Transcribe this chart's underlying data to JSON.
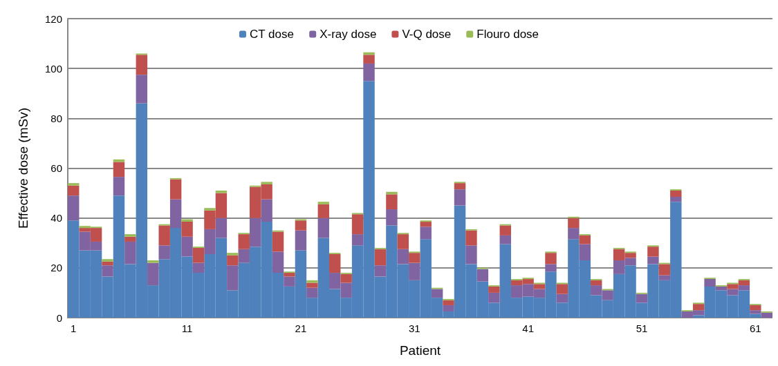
{
  "chart_data": {
    "type": "bar",
    "stacked": true,
    "xlabel": "Patient",
    "ylabel": "Effective dose (mSv)",
    "categories": [
      "1",
      null,
      null,
      null,
      null,
      null,
      null,
      null,
      null,
      null,
      "11",
      null,
      null,
      null,
      null,
      null,
      null,
      null,
      null,
      null,
      "21",
      null,
      null,
      null,
      null,
      null,
      null,
      null,
      null,
      null,
      "31",
      null,
      null,
      null,
      null,
      null,
      null,
      null,
      null,
      null,
      "41",
      null,
      null,
      null,
      null,
      null,
      null,
      null,
      null,
      null,
      "51",
      null,
      null,
      null,
      null,
      null,
      null,
      null,
      null,
      null,
      "61",
      null
    ],
    "series": [
      {
        "name": "CT dose",
        "color": "#4f81bd",
        "values": [
          39,
          27,
          27,
          16.5,
          49,
          21.5,
          86,
          13,
          23.5,
          36,
          24.5,
          18,
          25.5,
          32,
          11,
          22,
          28.5,
          38.5,
          18,
          12.5,
          27,
          8,
          32,
          11.5,
          8,
          29,
          95,
          16.5,
          37,
          21.5,
          15,
          31.5,
          8,
          2.5,
          45,
          21.5,
          14.5,
          6,
          29.5,
          8,
          8.5,
          8,
          18.5,
          6,
          31.5,
          23,
          9,
          7,
          17.5,
          21,
          6,
          21.5,
          15,
          46.5,
          0,
          1,
          12.5,
          11,
          9,
          11,
          1.5,
          0
        ]
      },
      {
        "name": "X-ray dose",
        "color": "#8064a2",
        "values": [
          10,
          7.5,
          3.5,
          4.5,
          7.5,
          9,
          11.5,
          9,
          5.5,
          11.5,
          8,
          4,
          10,
          8,
          10,
          5.5,
          11.5,
          9,
          8.5,
          4,
          8,
          4,
          8,
          6.5,
          6,
          4.5,
          7,
          4.5,
          6.5,
          6,
          7,
          5,
          3.5,
          2.5,
          6.5,
          7.5,
          5,
          4,
          3.5,
          5,
          5,
          3.5,
          3,
          3.5,
          4.5,
          6.5,
          4,
          4,
          5.5,
          3,
          3.5,
          3,
          2,
          2,
          2.5,
          2,
          3,
          1.5,
          2.5,
          2,
          1.5,
          2
        ]
      },
      {
        "name": "V-Q dose",
        "color": "#c0504d",
        "values": [
          4,
          1.5,
          5.5,
          1.5,
          6,
          2,
          8,
          0,
          8,
          8,
          6,
          6,
          7.5,
          10,
          4,
          6,
          12.5,
          6,
          8,
          1.5,
          4,
          2,
          5.5,
          7.5,
          3.5,
          8,
          3.5,
          6.5,
          6,
          6,
          4,
          2,
          0,
          2,
          2.5,
          6,
          0,
          2.5,
          4,
          2,
          2,
          2,
          4.5,
          4,
          4,
          3.5,
          2,
          0,
          4.5,
          2,
          0,
          4,
          4.5,
          2.5,
          0,
          2.5,
          0,
          0,
          2,
          2,
          2,
          0
        ]
      },
      {
        "name": "Flouro dose",
        "color": "#9bbb59",
        "values": [
          1,
          0.8,
          0.5,
          1,
          1,
          1,
          0.5,
          1,
          0.5,
          0.5,
          1,
          0.5,
          1,
          1,
          1,
          0.5,
          0.5,
          1,
          0.5,
          0.5,
          0.5,
          1,
          1,
          0.5,
          0.5,
          0.5,
          1,
          0.5,
          1,
          0.5,
          0.5,
          0.5,
          0.5,
          0.5,
          0.5,
          0.5,
          0.5,
          0.5,
          0.5,
          0.5,
          0.5,
          0.5,
          0.5,
          0.5,
          0.5,
          0.5,
          0.5,
          0.5,
          0.5,
          0.5,
          0.5,
          0.5,
          0.5,
          0.5,
          0.5,
          0.5,
          0.5,
          0.5,
          0.5,
          0.5,
          0.5,
          0.5
        ]
      }
    ],
    "ylim": [
      0,
      120
    ],
    "yticks": [
      0,
      20,
      40,
      60,
      80,
      100,
      120
    ],
    "grid": "y",
    "legend": "top"
  }
}
